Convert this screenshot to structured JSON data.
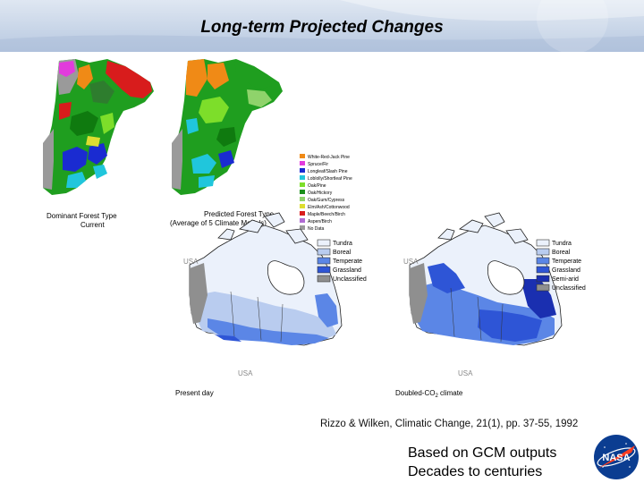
{
  "slide": {
    "title": "Long-term Projected Changes",
    "caption": "Rizzo & Wilken, Climatic Change, 21(1), pp. 37-55, 1992",
    "notes": [
      "Based on GCM outputs",
      "Decades to centuries"
    ],
    "logo_text": "NASA"
  },
  "forest_maps": {
    "left_label_line1": "Dominant Forest Type",
    "left_label_line2": "Current",
    "right_label_line1": "Predicted Forest Type",
    "right_label_line2": "(Average of 5 Climate Models)",
    "legend": [
      {
        "label": "White-Red-Jack Pine",
        "color": "#f08a16"
      },
      {
        "label": "Spruce/Fir",
        "color": "#e23bdc"
      },
      {
        "label": "Longleaf/Slash Pine",
        "color": "#1a2bd1"
      },
      {
        "label": "Loblolly/Shortleaf Pine",
        "color": "#20c6dc"
      },
      {
        "label": "Oak/Pine",
        "color": "#7dde2a"
      },
      {
        "label": "Oak/Hickory",
        "color": "#1a8f1a"
      },
      {
        "label": "Oak/Gum/Cypress",
        "color": "#8fd36b"
      },
      {
        "label": "Elm/Ash/Cottonwood",
        "color": "#dddd30"
      },
      {
        "label": "Maple/Beech/Birch",
        "color": "#d81c1c"
      },
      {
        "label": "Aspen/Birch",
        "color": "#b06bd3"
      },
      {
        "label": "No Data",
        "color": "#9a9a9a"
      }
    ]
  },
  "canada_maps": {
    "left": {
      "usa_top": "USA",
      "usa_bottom": "USA",
      "label": "Present day",
      "legend": [
        {
          "label": "Tundra",
          "color": "#ebf1fb"
        },
        {
          "label": "Boreal",
          "color": "#b9ccef"
        },
        {
          "label": "Temperate",
          "color": "#5b86e6"
        },
        {
          "label": "Grassland",
          "color": "#2e55d6"
        },
        {
          "label": "Unclassified",
          "color": "#8f8f8f"
        }
      ]
    },
    "right": {
      "usa_top": "USA",
      "usa_bottom": "USA",
      "label_prefix": "Doubled-CO",
      "label_sub": "2",
      "label_suffix": " climate",
      "legend": [
        {
          "label": "Tundra",
          "color": "#ebf1fb"
        },
        {
          "label": "Boreal",
          "color": "#b9ccef"
        },
        {
          "label": "Temperate",
          "color": "#5b86e6"
        },
        {
          "label": "Grassland",
          "color": "#2e55d6"
        },
        {
          "label": "Semi-arid",
          "color": "#1a2fb0"
        },
        {
          "label": "Unclassified",
          "color": "#8f8f8f"
        }
      ]
    }
  }
}
